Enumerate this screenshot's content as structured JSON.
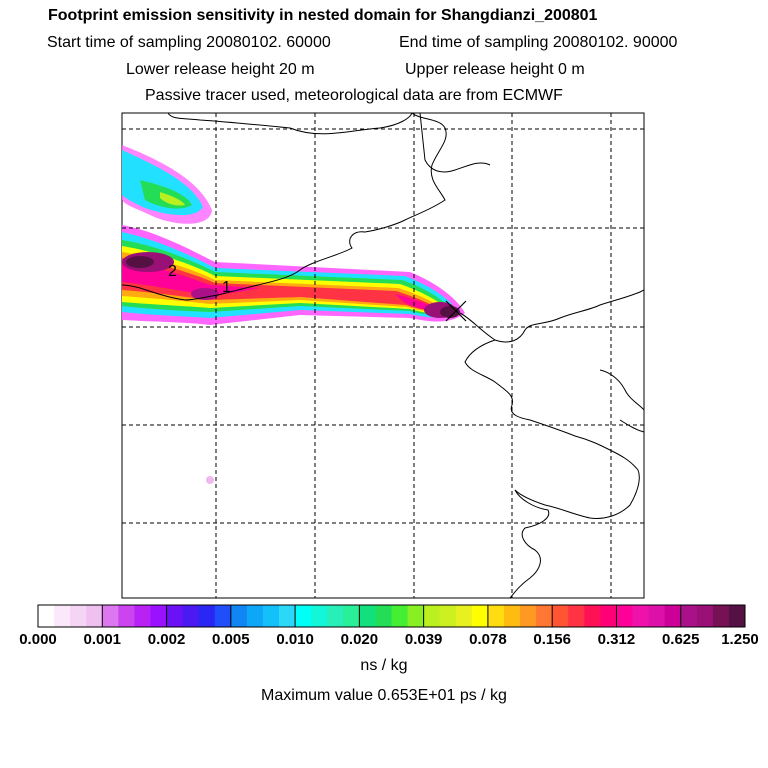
{
  "header": {
    "title": "Footprint emission sensitivity in nested domain for Shangdianzi_200801",
    "start_label": "Start time of sampling 20080102. 60000",
    "end_label": "End time of sampling 20080102. 90000",
    "lower_label": "Lower release height   20 m",
    "upper_label": "Upper release height    0 m",
    "tracer_label": "Passive tracer used, meteorological data are from ECMWF"
  },
  "chart_data": {
    "type": "heatmap",
    "title": "Footprint emission sensitivity in nested domain for Shangdianzi_200801",
    "colorbar": {
      "tick_labels": [
        "0.000",
        "0.001",
        "0.002",
        "0.005",
        "0.010",
        "0.020",
        "0.039",
        "0.078",
        "0.156",
        "0.312",
        "0.625",
        "1.250"
      ],
      "colors": [
        "#ffffff",
        "#fbe8fb",
        "#f5d5f5",
        "#f0c0f0",
        "#dd77f0",
        "#cc44f0",
        "#b822f5",
        "#9911ff",
        "#6a11f5",
        "#4b1af2",
        "#2a27f4",
        "#1f4ffa",
        "#0f86f3",
        "#0ea6f7",
        "#14c0fa",
        "#2cd8f8",
        "#00fff7",
        "#11f7d7",
        "#28efb7",
        "#28ef98",
        "#11e07c",
        "#22dd55",
        "#44ee33",
        "#88f022",
        "#bbf020",
        "#ccf020",
        "#e8f020",
        "#ffff00",
        "#ffdd11",
        "#ffbb11",
        "#ff9922",
        "#ff7733",
        "#ff5533",
        "#ff3344",
        "#ff1155",
        "#ff0077",
        "#ff0099",
        "#ee11aa",
        "#dd11aa",
        "#cc0099",
        "#aa1188",
        "#991177",
        "#771155",
        "#551144"
      ],
      "unit": "ns / kg"
    },
    "max_value_label": "Maximum value  0.653E+01 ps / kg",
    "annotations": [
      "1",
      "2"
    ],
    "receptor_marker": "X",
    "grid": true
  }
}
